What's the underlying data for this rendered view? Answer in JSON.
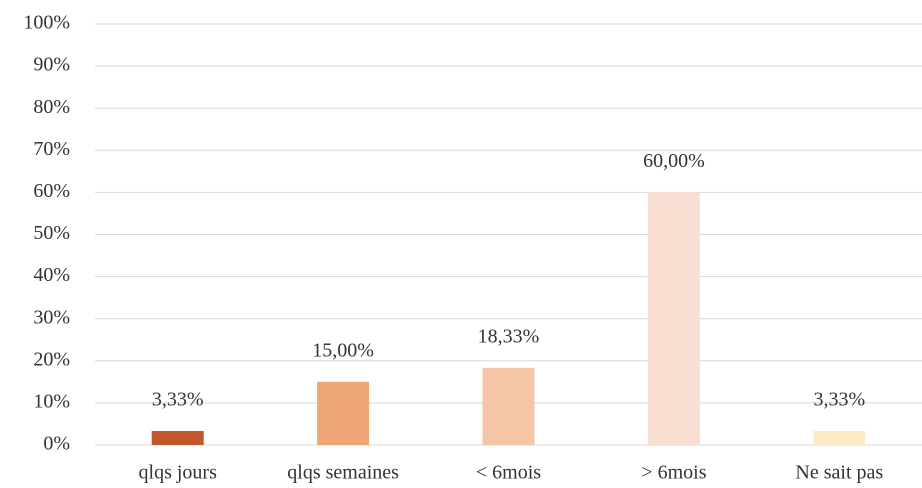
{
  "chart_data": {
    "type": "bar",
    "categories": [
      "qlqs jours",
      "qlqs semaines",
      "< 6mois",
      "> 6mois",
      "Ne sait pas"
    ],
    "values": [
      3.33,
      15.0,
      18.33,
      60.0,
      3.33
    ],
    "value_labels": [
      "3,33%",
      "15,00%",
      "18,33%",
      "60,00%",
      "3,33%"
    ],
    "colors": [
      "#c4562b",
      "#f0a676",
      "#f5c6a5",
      "#f9dfd1",
      "#fbecc6"
    ],
    "ylim": [
      0,
      100
    ],
    "yticks": [
      {
        "value": 0,
        "label": "0%"
      },
      {
        "value": 10,
        "label": "10%"
      },
      {
        "value": 20,
        "label": "20%"
      },
      {
        "value": 30,
        "label": "30%"
      },
      {
        "value": 40,
        "label": "40%"
      },
      {
        "value": 50,
        "label": "50%"
      },
      {
        "value": 60,
        "label": "60%"
      },
      {
        "value": 70,
        "label": "70%"
      },
      {
        "value": 80,
        "label": "80%"
      },
      {
        "value": 90,
        "label": "90%"
      },
      {
        "value": 100,
        "label": "100%"
      }
    ],
    "grid": true
  }
}
